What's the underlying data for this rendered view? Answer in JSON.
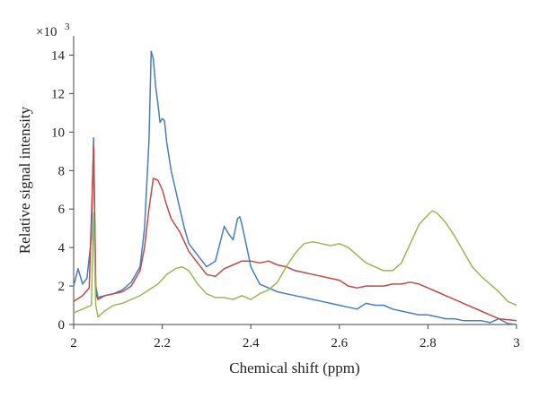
{
  "chart_data": {
    "type": "line",
    "title": "",
    "xlabel": "Chemical shift (ppm)",
    "ylabel": "Relative signal intensity",
    "y_scale_label": "×10",
    "y_scale_exponent": "3",
    "xlim": [
      2.0,
      3.0
    ],
    "ylim": [
      0,
      15
    ],
    "x_ticks": [
      2.0,
      2.2,
      2.4,
      2.6,
      2.8,
      3.0
    ],
    "x_tick_labels": [
      "2",
      "2.2",
      "2.4",
      "2.6",
      "2.8",
      "3"
    ],
    "y_ticks": [
      0,
      2,
      4,
      6,
      8,
      10,
      12,
      14
    ],
    "y_tick_labels": [
      "0",
      "2",
      "4",
      "6",
      "8",
      "10",
      "12",
      "14"
    ],
    "grid": false,
    "legend": "none",
    "series": [
      {
        "color": "#4a7ebb",
        "points": [
          [
            2.0,
            2.0
          ],
          [
            2.01,
            2.9
          ],
          [
            2.02,
            2.1
          ],
          [
            2.03,
            2.4
          ],
          [
            2.04,
            4.5
          ],
          [
            2.045,
            9.7
          ],
          [
            2.05,
            2.0
          ],
          [
            2.055,
            1.4
          ],
          [
            2.07,
            1.5
          ],
          [
            2.09,
            1.6
          ],
          [
            2.11,
            1.8
          ],
          [
            2.13,
            2.2
          ],
          [
            2.15,
            3.0
          ],
          [
            2.16,
            5.0
          ],
          [
            2.17,
            9.5
          ],
          [
            2.175,
            14.2
          ],
          [
            2.18,
            13.8
          ],
          [
            2.185,
            12.4
          ],
          [
            2.19,
            11.5
          ],
          [
            2.195,
            10.5
          ],
          [
            2.2,
            10.7
          ],
          [
            2.205,
            10.6
          ],
          [
            2.21,
            9.5
          ],
          [
            2.22,
            8.0
          ],
          [
            2.23,
            7.0
          ],
          [
            2.24,
            6.0
          ],
          [
            2.25,
            5.0
          ],
          [
            2.26,
            4.2
          ],
          [
            2.28,
            3.6
          ],
          [
            2.3,
            3.0
          ],
          [
            2.32,
            3.3
          ],
          [
            2.34,
            5.1
          ],
          [
            2.35,
            4.7
          ],
          [
            2.36,
            4.4
          ],
          [
            2.37,
            5.5
          ],
          [
            2.375,
            5.6
          ],
          [
            2.38,
            5.2
          ],
          [
            2.39,
            4.1
          ],
          [
            2.4,
            3.0
          ],
          [
            2.42,
            2.1
          ],
          [
            2.44,
            1.9
          ],
          [
            2.46,
            1.7
          ],
          [
            2.48,
            1.6
          ],
          [
            2.5,
            1.5
          ],
          [
            2.52,
            1.4
          ],
          [
            2.54,
            1.3
          ],
          [
            2.56,
            1.2
          ],
          [
            2.58,
            1.1
          ],
          [
            2.6,
            1.0
          ],
          [
            2.62,
            0.9
          ],
          [
            2.64,
            0.8
          ],
          [
            2.66,
            1.1
          ],
          [
            2.68,
            1.0
          ],
          [
            2.7,
            1.0
          ],
          [
            2.72,
            0.8
          ],
          [
            2.74,
            0.7
          ],
          [
            2.76,
            0.6
          ],
          [
            2.78,
            0.5
          ],
          [
            2.8,
            0.5
          ],
          [
            2.82,
            0.4
          ],
          [
            2.84,
            0.3
          ],
          [
            2.86,
            0.3
          ],
          [
            2.88,
            0.2
          ],
          [
            2.9,
            0.2
          ],
          [
            2.92,
            0.2
          ],
          [
            2.94,
            0.1
          ],
          [
            2.96,
            0.3
          ],
          [
            2.98,
            0.05
          ],
          [
            3.0,
            0.0
          ]
        ]
      },
      {
        "color": "#be4b48",
        "points": [
          [
            2.0,
            1.2
          ],
          [
            2.02,
            1.5
          ],
          [
            2.035,
            1.9
          ],
          [
            2.045,
            9.3
          ],
          [
            2.05,
            1.6
          ],
          [
            2.055,
            1.3
          ],
          [
            2.07,
            1.5
          ],
          [
            2.09,
            1.6
          ],
          [
            2.11,
            1.7
          ],
          [
            2.13,
            2.0
          ],
          [
            2.15,
            2.8
          ],
          [
            2.16,
            4.0
          ],
          [
            2.17,
            6.0
          ],
          [
            2.18,
            7.6
          ],
          [
            2.19,
            7.5
          ],
          [
            2.2,
            7.0
          ],
          [
            2.21,
            6.2
          ],
          [
            2.22,
            5.5
          ],
          [
            2.24,
            4.8
          ],
          [
            2.26,
            3.8
          ],
          [
            2.28,
            3.2
          ],
          [
            2.3,
            2.6
          ],
          [
            2.32,
            2.5
          ],
          [
            2.34,
            2.9
          ],
          [
            2.36,
            3.1
          ],
          [
            2.38,
            3.3
          ],
          [
            2.4,
            3.3
          ],
          [
            2.42,
            3.2
          ],
          [
            2.44,
            3.3
          ],
          [
            2.46,
            3.1
          ],
          [
            2.48,
            3.0
          ],
          [
            2.5,
            2.8
          ],
          [
            2.52,
            2.7
          ],
          [
            2.54,
            2.6
          ],
          [
            2.56,
            2.5
          ],
          [
            2.58,
            2.4
          ],
          [
            2.6,
            2.3
          ],
          [
            2.62,
            2.0
          ],
          [
            2.64,
            1.9
          ],
          [
            2.66,
            2.0
          ],
          [
            2.68,
            2.0
          ],
          [
            2.7,
            2.0
          ],
          [
            2.72,
            2.1
          ],
          [
            2.74,
            2.1
          ],
          [
            2.76,
            2.2
          ],
          [
            2.78,
            2.1
          ],
          [
            2.8,
            1.9
          ],
          [
            2.82,
            1.7
          ],
          [
            2.84,
            1.5
          ],
          [
            2.86,
            1.3
          ],
          [
            2.88,
            1.1
          ],
          [
            2.9,
            0.9
          ],
          [
            2.92,
            0.7
          ],
          [
            2.94,
            0.5
          ],
          [
            2.96,
            0.3
          ],
          [
            2.98,
            0.25
          ],
          [
            3.0,
            0.2
          ]
        ]
      },
      {
        "color": "#98b954",
        "points": [
          [
            2.0,
            0.6
          ],
          [
            2.02,
            0.8
          ],
          [
            2.04,
            1.0
          ],
          [
            2.045,
            5.8
          ],
          [
            2.05,
            1.0
          ],
          [
            2.055,
            0.4
          ],
          [
            2.07,
            0.7
          ],
          [
            2.09,
            1.0
          ],
          [
            2.11,
            1.1
          ],
          [
            2.13,
            1.3
          ],
          [
            2.15,
            1.5
          ],
          [
            2.17,
            1.8
          ],
          [
            2.19,
            2.1
          ],
          [
            2.21,
            2.6
          ],
          [
            2.23,
            2.9
          ],
          [
            2.245,
            3.0
          ],
          [
            2.26,
            2.8
          ],
          [
            2.28,
            2.1
          ],
          [
            2.3,
            1.6
          ],
          [
            2.32,
            1.4
          ],
          [
            2.34,
            1.4
          ],
          [
            2.36,
            1.3
          ],
          [
            2.38,
            1.5
          ],
          [
            2.4,
            1.3
          ],
          [
            2.42,
            1.6
          ],
          [
            2.44,
            1.8
          ],
          [
            2.46,
            2.2
          ],
          [
            2.48,
            3.0
          ],
          [
            2.5,
            3.7
          ],
          [
            2.52,
            4.2
          ],
          [
            2.54,
            4.3
          ],
          [
            2.56,
            4.2
          ],
          [
            2.58,
            4.1
          ],
          [
            2.6,
            4.2
          ],
          [
            2.62,
            4.0
          ],
          [
            2.64,
            3.6
          ],
          [
            2.66,
            3.2
          ],
          [
            2.68,
            3.0
          ],
          [
            2.7,
            2.8
          ],
          [
            2.72,
            2.8
          ],
          [
            2.74,
            3.2
          ],
          [
            2.76,
            4.2
          ],
          [
            2.78,
            5.2
          ],
          [
            2.8,
            5.7
          ],
          [
            2.81,
            5.9
          ],
          [
            2.82,
            5.8
          ],
          [
            2.84,
            5.3
          ],
          [
            2.86,
            4.6
          ],
          [
            2.88,
            3.8
          ],
          [
            2.9,
            3.0
          ],
          [
            2.92,
            2.5
          ],
          [
            2.94,
            2.1
          ],
          [
            2.96,
            1.7
          ],
          [
            2.98,
            1.2
          ],
          [
            3.0,
            1.0
          ]
        ]
      }
    ]
  }
}
